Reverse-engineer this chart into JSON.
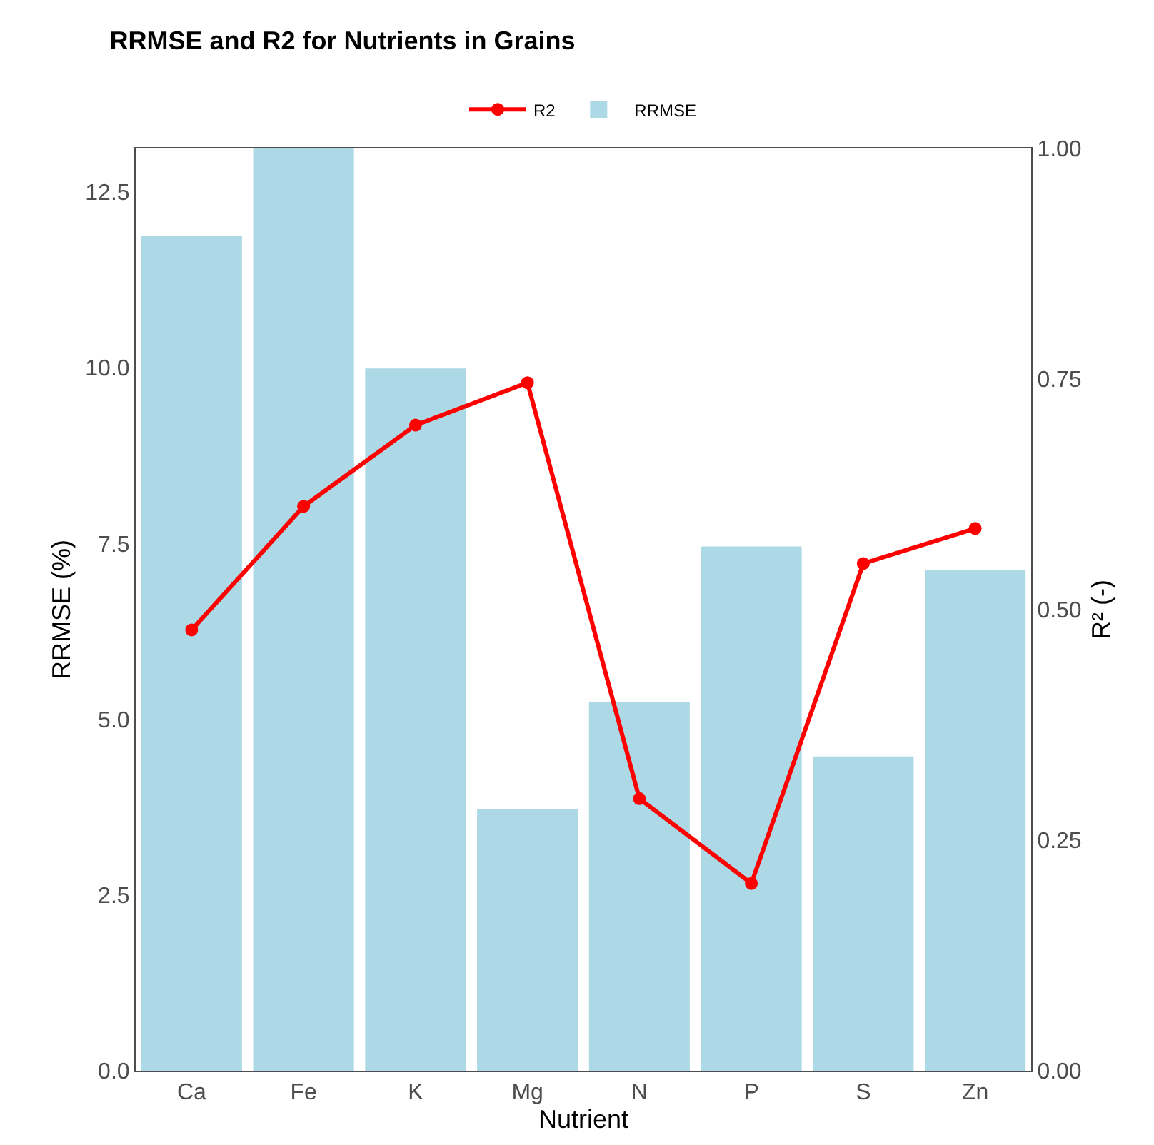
{
  "chart_data": {
    "type": "bar",
    "title": "RRMSE and R2 for Nutrients in Grains",
    "xlabel": "Nutrient",
    "ylabel": "RRMSE (%)",
    "y2label": "R² (-)",
    "categories": [
      "Ca",
      "Fe",
      "K",
      "Mg",
      "N",
      "P",
      "S",
      "Zn"
    ],
    "series": [
      {
        "name": "R2",
        "type": "line",
        "axis": "y2",
        "color": "#ff0000",
        "marker": "circle",
        "line_style": "solid",
        "values": [
          0.478,
          0.612,
          0.7,
          0.746,
          0.295,
          0.203,
          0.55,
          0.588
        ]
      },
      {
        "name": "RRMSE",
        "color": "#add8e6",
        "values": [
          11.88,
          13.12,
          9.99,
          3.72,
          5.24,
          7.46,
          4.47,
          7.12
        ]
      }
    ],
    "ylim": [
      0,
      13.12
    ],
    "yticks": [
      {
        "value": 0,
        "label": "0.0"
      },
      {
        "value": 2.5,
        "label": "2.5"
      },
      {
        "value": 5,
        "label": "5.0"
      },
      {
        "value": 7.5,
        "label": "7.5"
      },
      {
        "value": 10,
        "label": "10.0"
      },
      {
        "value": 12.5,
        "label": "12.5"
      }
    ],
    "y2lim": [
      0,
      1
    ],
    "y2ticks": [
      {
        "value": 0,
        "label": "0.00"
      },
      {
        "value": 0.25,
        "label": "0.25"
      },
      {
        "value": 0.5,
        "label": "0.50"
      },
      {
        "value": 0.75,
        "label": "0.75"
      },
      {
        "value": 1,
        "label": "1.00"
      }
    ],
    "grid": false,
    "legend": "top"
  }
}
